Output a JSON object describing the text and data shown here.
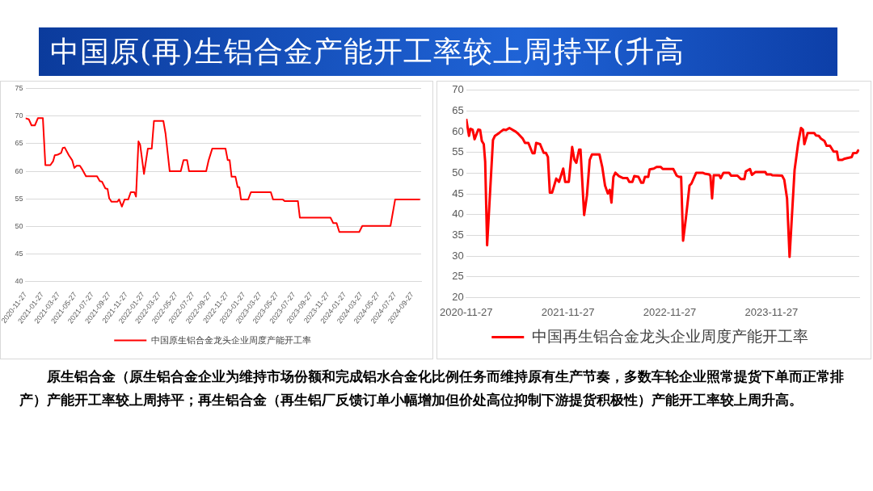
{
  "chart_data": [
    {
      "type": "line",
      "title": "中国原(再)生铝合金产能开工率较上周持平(升高",
      "annotations": [
        "原生铝合金（原生铝合金企业为维持市场份额和完成铝水合金化比例任务而维持原有生产节奏，多数车轮企业照常提货下单而正常排产）产能开工率较上周持平；再生铝合金（再生铝厂反馈订单小幅增加但价处高位抑制下游提货积极性）产能开工率较上周升高。"
      ],
      "x": [
        "2020-11-27",
        "2020-12-09",
        "2020-12-19",
        "2020-12-31",
        "2021-01-11",
        "2021-01-29",
        "2021-02-07",
        "2021-02-25",
        "2021-03-07",
        "2021-03-13",
        "2021-03-24",
        "2021-04-05",
        "2021-04-11",
        "2021-04-18",
        "2021-05-03",
        "2021-05-15",
        "2021-05-23",
        "2021-05-31",
        "2021-06-12",
        "2021-06-22",
        "2021-07-04",
        "2021-08-13",
        "2021-08-23",
        "2021-08-31",
        "2021-09-12",
        "2021-09-20",
        "2021-09-26",
        "2021-10-04",
        "2021-10-26",
        "2021-11-01",
        "2021-11-11",
        "2021-11-21",
        "2021-12-04",
        "2021-12-13",
        "2021-12-26",
        "2022-01-01",
        "2022-01-10",
        "2022-01-16",
        "2022-01-30",
        "2022-02-13",
        "2022-02-27",
        "2022-03-07",
        "2022-04-10",
        "2022-04-18",
        "2022-05-03",
        "2022-06-12",
        "2022-06-22",
        "2022-07-05",
        "2022-07-12",
        "2022-09-12",
        "2022-09-21",
        "2022-10-04",
        "2022-11-21",
        "2022-11-29",
        "2022-12-06",
        "2022-12-13",
        "2022-12-27",
        "2023-01-04",
        "2023-01-10",
        "2023-01-16",
        "2023-02-11",
        "2023-02-21",
        "2023-05-04",
        "2023-05-12",
        "2023-06-16",
        "2023-06-23",
        "2023-08-10",
        "2023-08-17",
        "2023-12-06",
        "2023-12-16",
        "2023-12-28",
        "2024-01-07",
        "2024-03-19",
        "2024-03-30",
        "2024-07-10",
        "2024-07-27",
        "2024-10-25"
      ],
      "series": [
        {
          "name": "中国原生铝合金龙头企业周度产能开工率",
          "color": "#ff0000",
          "values": [
            69.6,
            69.4,
            68.3,
            68.3,
            69.6,
            69.6,
            61.1,
            61.1,
            61.8,
            62.9,
            63.0,
            63.3,
            64.2,
            64.3,
            62.9,
            62.0,
            60.6,
            61.0,
            61.0,
            60.2,
            59.1,
            59.1,
            58.2,
            58.1,
            56.9,
            56.8,
            55.1,
            54.5,
            54.5,
            54.9,
            53.6,
            54.9,
            54.9,
            56.2,
            56.2,
            55.4,
            65.4,
            64.8,
            59.5,
            64.1,
            64.1,
            69.1,
            69.1,
            66.8,
            60.0,
            60.0,
            62.0,
            62.0,
            60.0,
            60.0,
            62.0,
            64.1,
            64.1,
            62.0,
            62.0,
            59.0,
            59.0,
            57.1,
            57.1,
            54.9,
            54.9,
            56.2,
            56.2,
            54.9,
            54.9,
            54.6,
            54.6,
            51.6,
            51.6,
            50.6,
            50.6,
            49.0,
            49.0,
            50.1,
            50.1,
            54.9,
            54.9
          ]
        }
      ],
      "xlim": [
        "2020-11-27",
        "2024-10-29"
      ],
      "xticks": [
        "2020-11-27",
        "2021-01-27",
        "2021-03-27",
        "2021-05-27",
        "2021-07-27",
        "2021-09-27",
        "2021-11-27",
        "2022-01-27",
        "2022-03-27",
        "2022-05-27",
        "2022-07-27",
        "2022-09-27",
        "2022-11-27",
        "2023-01-27",
        "2023-03-27",
        "2023-05-27",
        "2023-07-27",
        "2023-09-27",
        "2023-11-27",
        "2024-01-27",
        "2024-03-27",
        "2024-05-27",
        "2024-07-27",
        "2024-09-27"
      ],
      "ylim": [
        40,
        75
      ],
      "yticks": [
        40,
        45,
        50,
        55,
        60,
        65,
        70,
        75
      ],
      "grid": "y",
      "legend": "bottom",
      "marker": "none",
      "line_style": "solid"
    },
    {
      "type": "line",
      "x": [
        "2020-11-27",
        "2020-12-07",
        "2020-12-12",
        "2020-12-20",
        "2020-12-27",
        "2021-01-09",
        "2021-01-16",
        "2021-01-22",
        "2021-01-29",
        "2021-02-03",
        "2021-02-10",
        "2021-03-03",
        "2021-03-10",
        "2021-03-25",
        "2021-04-09",
        "2021-04-19",
        "2021-05-01",
        "2021-05-24",
        "2021-06-03",
        "2021-06-18",
        "2021-06-26",
        "2021-07-08",
        "2021-07-23",
        "2021-07-30",
        "2021-08-05",
        "2021-08-19",
        "2021-09-01",
        "2021-09-09",
        "2021-09-16",
        "2021-09-23",
        "2021-10-01",
        "2021-10-16",
        "2021-10-26",
        "2021-11-10",
        "2021-11-17",
        "2021-11-30",
        "2021-12-12",
        "2021-12-20",
        "2021-12-27",
        "2022-01-06",
        "2022-01-11",
        "2022-01-24",
        "2022-02-03",
        "2022-02-13",
        "2022-02-21",
        "2022-03-20",
        "2022-03-30",
        "2022-04-09",
        "2022-04-19",
        "2022-04-26",
        "2022-05-02",
        "2022-05-09",
        "2022-05-16",
        "2022-05-29",
        "2022-06-13",
        "2022-06-28",
        "2022-07-05",
        "2022-07-16",
        "2022-07-23",
        "2022-08-07",
        "2022-08-17",
        "2022-08-24",
        "2022-08-30",
        "2022-09-11",
        "2022-09-16",
        "2022-10-01",
        "2022-10-11",
        "2022-10-26",
        "2022-11-02",
        "2022-12-10",
        "2022-12-22",
        "2022-12-30",
        "2023-01-07",
        "2023-01-14",
        "2023-01-24",
        "2023-02-06",
        "2023-02-13",
        "2023-03-02",
        "2023-03-25",
        "2023-04-01",
        "2023-04-17",
        "2023-04-22",
        "2023-04-28",
        "2023-05-04",
        "2023-05-24",
        "2023-05-29",
        "2023-06-08",
        "2023-06-28",
        "2023-07-05",
        "2023-07-28",
        "2023-08-09",
        "2023-08-22",
        "2023-08-27",
        "2023-09-11",
        "2023-09-18",
        "2023-10-01",
        "2023-11-05",
        "2023-11-10",
        "2023-11-25",
        "2023-11-30",
        "2024-01-04",
        "2024-01-12",
        "2024-01-22",
        "2024-01-31",
        "2024-02-18",
        "2024-03-02",
        "2024-03-12",
        "2024-03-19",
        "2024-03-24",
        "2024-04-05",
        "2024-04-28",
        "2024-05-05",
        "2024-05-15",
        "2024-05-23",
        "2024-06-04",
        "2024-06-12",
        "2024-06-24",
        "2024-07-07",
        "2024-07-19",
        "2024-07-24",
        "2024-08-06",
        "2024-08-16",
        "2024-09-10",
        "2024-09-15",
        "2024-09-28",
        "2024-10-05"
      ],
      "series": [
        {
          "name": "中国再生铝合金龙头企业周度产能开工率",
          "color": "#ff0000",
          "values": [
            63.1,
            59.0,
            60.7,
            60.5,
            58.2,
            60.5,
            60.4,
            57.8,
            57.0,
            52.8,
            32.6,
            58.0,
            59.0,
            59.7,
            60.5,
            60.4,
            60.9,
            60.0,
            59.4,
            58.3,
            57.3,
            57.3,
            54.8,
            54.8,
            57.3,
            57.0,
            54.9,
            54.9,
            53.9,
            45.3,
            45.3,
            48.7,
            47.9,
            51.1,
            47.9,
            47.9,
            56.3,
            53.2,
            52.5,
            55.7,
            55.7,
            39.9,
            44.6,
            53.2,
            54.5,
            54.5,
            51.5,
            47.0,
            45.1,
            46.0,
            42.9,
            49.1,
            50.1,
            49.3,
            48.8,
            48.8,
            47.9,
            47.9,
            49.3,
            49.1,
            47.7,
            47.7,
            49.1,
            49.1,
            50.9,
            51.1,
            51.5,
            51.5,
            51.0,
            51.0,
            49.4,
            49.1,
            49.1,
            33.7,
            39.1,
            47.0,
            47.5,
            50.1,
            50.1,
            49.9,
            49.7,
            49.4,
            43.9,
            49.5,
            49.5,
            48.8,
            50.1,
            50.1,
            49.4,
            49.4,
            48.6,
            48.6,
            50.4,
            51.0,
            49.6,
            50.3,
            50.3,
            49.7,
            49.7,
            49.5,
            49.4,
            48.4,
            43.9,
            29.8,
            50.8,
            57.3,
            60.9,
            60.5,
            57.0,
            59.7,
            59.7,
            59.1,
            59.0,
            58.3,
            57.8,
            56.6,
            56.6,
            55.2,
            55.2,
            53.2,
            53.2,
            53.5,
            53.9,
            54.8,
            54.9,
            55.7
          ]
        }
      ],
      "xlim": [
        "2020-11-27",
        "2024-10-07"
      ],
      "xticks": [
        "2020-11-27",
        "2021-11-27",
        "2022-11-27",
        "2023-11-27"
      ],
      "ylim": [
        20,
        70
      ],
      "yticks": [
        20,
        25,
        30,
        35,
        40,
        45,
        50,
        55,
        60,
        65,
        70
      ],
      "grid": "y",
      "legend": "bottom",
      "marker": "none",
      "line_style": "solid"
    }
  ]
}
